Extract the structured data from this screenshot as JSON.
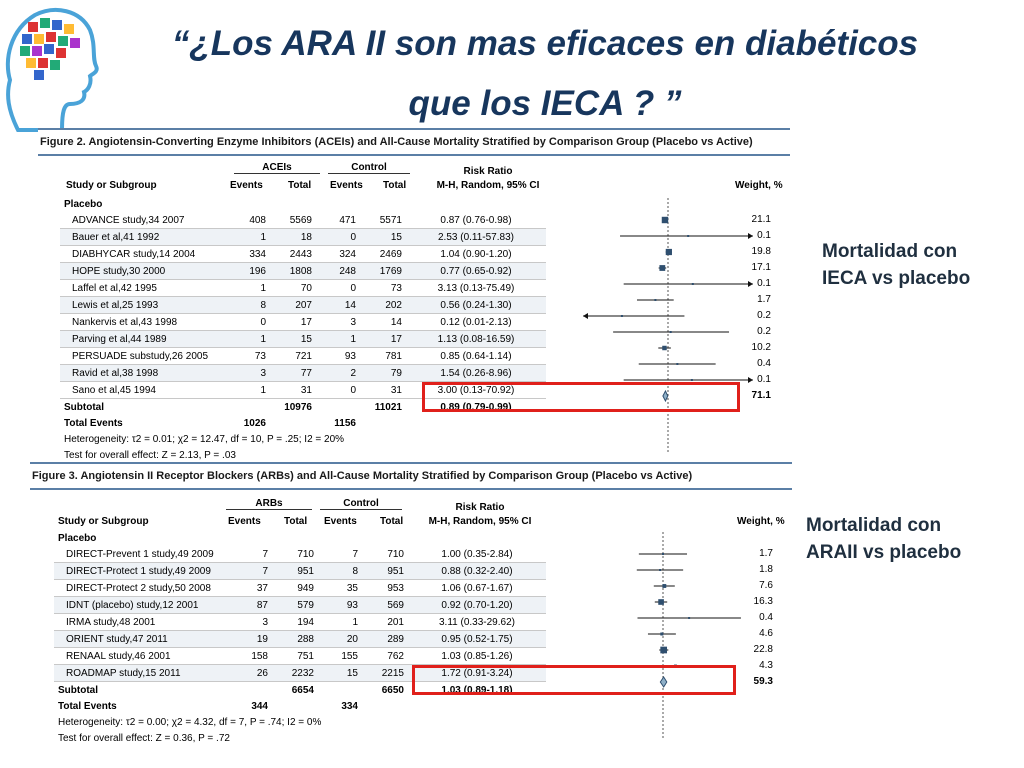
{
  "slide": {
    "title_line1": "“¿Los ARA II son mas eficaces en diabéticos",
    "title_line2": "que los IECA ? ”",
    "caption1_line1": "Mortalidad con",
    "caption1_line2": "IECA vs placebo",
    "caption2_line1": "Mortalidad con",
    "caption2_line2": "ARAII vs placebo",
    "title_color": "#17365d",
    "highlight_color": "#e0201b"
  },
  "figure2": {
    "caption": "Figure 2. Angiotensin-Converting Enzyme Inhibitors (ACEIs) and All-Cause Mortality Stratified by Comparison Group (Placebo vs Active)",
    "group_treat": "ACEIs",
    "group_control": "Control",
    "col_study": "Study or Subgroup",
    "col_events": "Events",
    "col_total": "Total",
    "col_rr1": "Risk Ratio",
    "col_rr2": "M-H, Random, 95% CI",
    "col_weight": "Weight, %",
    "section": "Placebo",
    "rows": [
      {
        "study": "ADVANCE study,34 2007",
        "e1": "408",
        "t1": "5569",
        "e2": "471",
        "t2": "5571",
        "ci": "0.87 (0.76-0.98)",
        "w": "21.1"
      },
      {
        "study": "Bauer et al,41 1992",
        "e1": "1",
        "t1": "18",
        "e2": "0",
        "t2": "15",
        "ci": "2.53 (0.11-57.83)",
        "w": "0.1"
      },
      {
        "study": "DIABHYCAR study,14 2004",
        "e1": "334",
        "t1": "2443",
        "e2": "324",
        "t2": "2469",
        "ci": "1.04 (0.90-1.20)",
        "w": "19.8"
      },
      {
        "study": "HOPE study,30 2000",
        "e1": "196",
        "t1": "1808",
        "e2": "248",
        "t2": "1769",
        "ci": "0.77 (0.65-0.92)",
        "w": "17.1"
      },
      {
        "study": "Laffel et al,42 1995",
        "e1": "1",
        "t1": "70",
        "e2": "0",
        "t2": "73",
        "ci": "3.13 (0.13-75.49)",
        "w": "0.1"
      },
      {
        "study": "Lewis et al,25 1993",
        "e1": "8",
        "t1": "207",
        "e2": "14",
        "t2": "202",
        "ci": "0.56 (0.24-1.30)",
        "w": "1.7"
      },
      {
        "study": "Nankervis et al,43 1998",
        "e1": "0",
        "t1": "17",
        "e2": "3",
        "t2": "14",
        "ci": "0.12 (0.01-2.13)",
        "w": "0.2"
      },
      {
        "study": "Parving et al,44 1989",
        "e1": "1",
        "t1": "15",
        "e2": "1",
        "t2": "17",
        "ci": "1.13 (0.08-16.59)",
        "w": "0.2"
      },
      {
        "study": "PERSUADE substudy,26 2005",
        "e1": "73",
        "t1": "721",
        "e2": "93",
        "t2": "781",
        "ci": "0.85 (0.64-1.14)",
        "w": "10.2"
      },
      {
        "study": "Ravid et al,38 1998",
        "e1": "3",
        "t1": "77",
        "e2": "2",
        "t2": "79",
        "ci": "1.54 (0.26-8.96)",
        "w": "0.4"
      },
      {
        "study": "Sano et al,45 1994",
        "e1": "1",
        "t1": "31",
        "e2": "0",
        "t2": "31",
        "ci": "3.00 (0.13-70.92)",
        "w": "0.1"
      }
    ],
    "subtotal": {
      "label": "Subtotal",
      "t1": "10976",
      "t2": "11021",
      "ci": "0.89 (0.79-0.99)",
      "w": "71.1"
    },
    "total_events": {
      "label": "Total Events",
      "e1": "1026",
      "e2": "1156"
    },
    "heterogeneity": "Heterogeneity: τ2 = 0.01; χ2 = 12.47, df = 10, P = .25; I2 = 20%",
    "overall": "Test for overall effect: Z = 2.13, P = .03"
  },
  "figure3": {
    "caption": "Figure 3. Angiotensin II Receptor Blockers (ARBs) and All-Cause Mortality Stratified by Comparison Group (Placebo vs Active)",
    "group_treat": "ARBs",
    "group_control": "Control",
    "col_study": "Study or Subgroup",
    "col_events": "Events",
    "col_total": "Total",
    "col_rr1": "Risk Ratio",
    "col_rr2": "M-H, Random, 95% CI",
    "col_weight": "Weight, %",
    "section": "Placebo",
    "rows": [
      {
        "study": "DIRECT-Prevent 1 study,49 2009",
        "e1": "7",
        "t1": "710",
        "e2": "7",
        "t2": "710",
        "ci": "1.00 (0.35-2.84)",
        "w": "1.7"
      },
      {
        "study": "DIRECT-Protect 1 study,49 2009",
        "e1": "7",
        "t1": "951",
        "e2": "8",
        "t2": "951",
        "ci": "0.88 (0.32-2.40)",
        "w": "1.8"
      },
      {
        "study": "DIRECT-Protect 2 study,50 2008",
        "e1": "37",
        "t1": "949",
        "e2": "35",
        "t2": "953",
        "ci": "1.06 (0.67-1.67)",
        "w": "7.6"
      },
      {
        "study": "IDNT (placebo) study,12 2001",
        "e1": "87",
        "t1": "579",
        "e2": "93",
        "t2": "569",
        "ci": "0.92 (0.70-1.20)",
        "w": "16.3"
      },
      {
        "study": "IRMA study,48 2001",
        "e1": "3",
        "t1": "194",
        "e2": "1",
        "t2": "201",
        "ci": "3.11 (0.33-29.62)",
        "w": "0.4"
      },
      {
        "study": "ORIENT study,47 2011",
        "e1": "19",
        "t1": "288",
        "e2": "20",
        "t2": "289",
        "ci": "0.95 (0.52-1.75)",
        "w": "4.6"
      },
      {
        "study": "RENAAL study,46 2001",
        "e1": "158",
        "t1": "751",
        "e2": "155",
        "t2": "762",
        "ci": "1.03 (0.85-1.26)",
        "w": "22.8"
      },
      {
        "study": "ROADMAP study,15 2011",
        "e1": "26",
        "t1": "2232",
        "e2": "15",
        "t2": "2215",
        "ci": "1.72 (0.91-3.24)",
        "w": "4.3"
      }
    ],
    "subtotal": {
      "label": "Subtotal",
      "t1": "6654",
      "t2": "6650",
      "ci": "1.03 (0.89-1.18)",
      "w": "59.3"
    },
    "total_events": {
      "label": "Total Events",
      "e1": "344",
      "e2": "334"
    },
    "heterogeneity": "Heterogeneity: τ2 = 0.00; χ2 = 4.32, df = 7, P = .74; I2 = 0%",
    "overall": "Test for overall effect: Z = 0.36, P = .72"
  },
  "chart_data": [
    {
      "type": "scatter",
      "subtype": "forest-plot",
      "scale": "log",
      "xlabel": "Risk Ratio",
      "series": [
        {
          "values": [
            {
              "rr": 0.87,
              "lo": 0.76,
              "hi": 0.98,
              "w": 21.1
            },
            {
              "rr": 2.53,
              "lo": 0.11,
              "hi": 57.83,
              "w": 0.1
            },
            {
              "rr": 1.04,
              "lo": 0.9,
              "hi": 1.2,
              "w": 19.8
            },
            {
              "rr": 0.77,
              "lo": 0.65,
              "hi": 0.92,
              "w": 17.1
            },
            {
              "rr": 3.13,
              "lo": 0.13,
              "hi": 75.49,
              "w": 0.1
            },
            {
              "rr": 0.56,
              "lo": 0.24,
              "hi": 1.3,
              "w": 1.7
            },
            {
              "rr": 0.12,
              "lo": 0.01,
              "hi": 2.13,
              "w": 0.2
            },
            {
              "rr": 1.13,
              "lo": 0.08,
              "hi": 16.59,
              "w": 0.2
            },
            {
              "rr": 0.85,
              "lo": 0.64,
              "hi": 1.14,
              "w": 10.2
            },
            {
              "rr": 1.54,
              "lo": 0.26,
              "hi": 8.96,
              "w": 0.4
            },
            {
              "rr": 3.0,
              "lo": 0.13,
              "hi": 70.92,
              "w": 0.1
            }
          ]
        }
      ],
      "summary": {
        "rr": 0.89,
        "lo": 0.79,
        "hi": 0.99
      }
    },
    {
      "type": "scatter",
      "subtype": "forest-plot",
      "scale": "log",
      "xlabel": "Risk Ratio",
      "series": [
        {
          "values": [
            {
              "rr": 1.0,
              "lo": 0.35,
              "hi": 2.84,
              "w": 1.7
            },
            {
              "rr": 0.88,
              "lo": 0.32,
              "hi": 2.4,
              "w": 1.8
            },
            {
              "rr": 1.06,
              "lo": 0.67,
              "hi": 1.67,
              "w": 7.6
            },
            {
              "rr": 0.92,
              "lo": 0.7,
              "hi": 1.2,
              "w": 16.3
            },
            {
              "rr": 3.11,
              "lo": 0.33,
              "hi": 29.62,
              "w": 0.4
            },
            {
              "rr": 0.95,
              "lo": 0.52,
              "hi": 1.75,
              "w": 4.6
            },
            {
              "rr": 1.03,
              "lo": 0.85,
              "hi": 1.26,
              "w": 22.8
            },
            {
              "rr": 1.72,
              "lo": 0.91,
              "hi": 3.24,
              "w": 4.3
            }
          ]
        }
      ],
      "summary": {
        "rr": 1.03,
        "lo": 0.89,
        "hi": 1.18
      }
    }
  ]
}
